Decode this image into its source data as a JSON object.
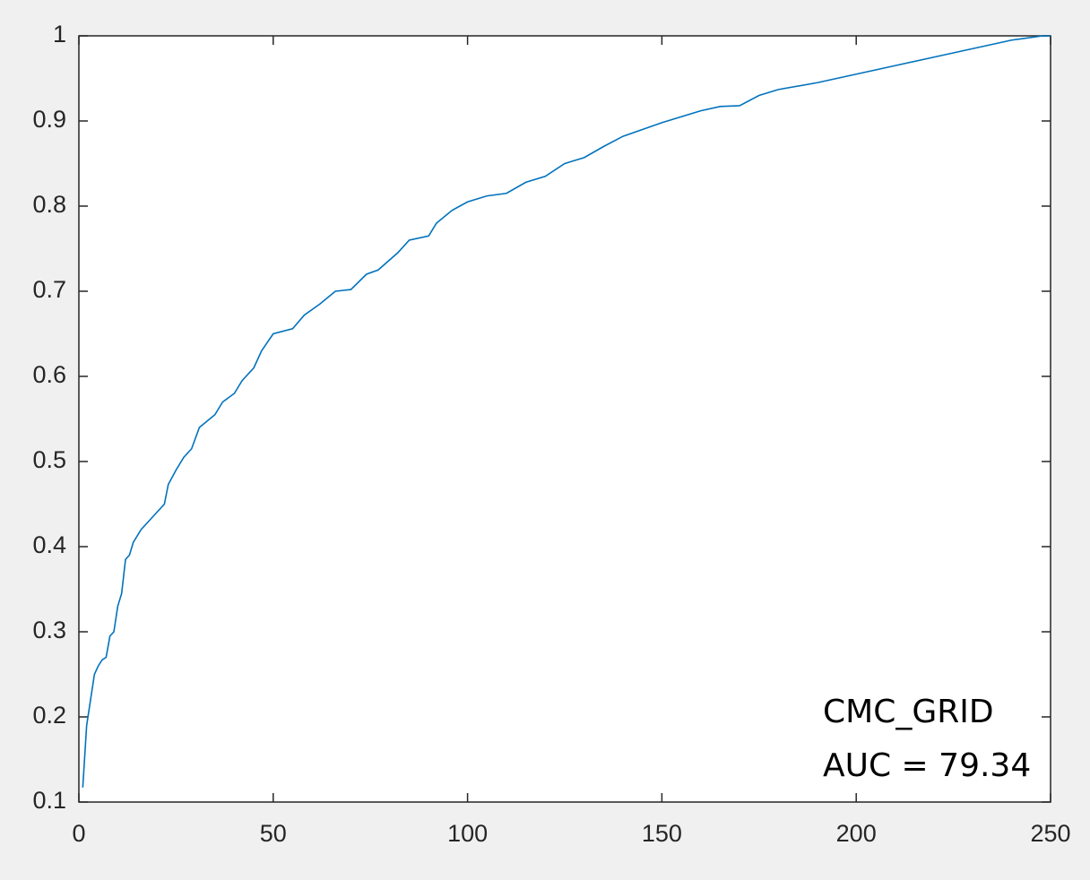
{
  "chart_data": {
    "type": "line",
    "x": [
      1,
      2,
      3,
      4,
      5,
      6,
      7,
      8,
      9,
      10,
      11,
      12,
      13,
      14,
      16,
      18,
      20,
      22,
      23,
      25,
      27,
      29,
      31,
      35,
      37,
      40,
      42,
      45,
      47,
      50,
      55,
      58,
      62,
      66,
      70,
      74,
      77,
      82,
      85,
      90,
      92,
      96,
      100,
      105,
      110,
      115,
      120,
      125,
      130,
      135,
      140,
      145,
      150,
      155,
      160,
      165,
      170,
      175,
      180,
      190,
      200,
      210,
      220,
      230,
      240,
      248,
      250
    ],
    "series": [
      {
        "color": "#0072bd",
        "values": [
          0.117,
          0.19,
          0.22,
          0.25,
          0.26,
          0.267,
          0.27,
          0.295,
          0.3,
          0.33,
          0.345,
          0.385,
          0.39,
          0.405,
          0.42,
          0.43,
          0.44,
          0.45,
          0.473,
          0.49,
          0.505,
          0.515,
          0.54,
          0.555,
          0.57,
          0.58,
          0.595,
          0.61,
          0.63,
          0.65,
          0.656,
          0.672,
          0.685,
          0.7,
          0.702,
          0.72,
          0.725,
          0.745,
          0.76,
          0.765,
          0.78,
          0.795,
          0.805,
          0.812,
          0.815,
          0.828,
          0.835,
          0.85,
          0.857,
          0.87,
          0.882,
          0.89,
          0.898,
          0.905,
          0.912,
          0.917,
          0.918,
          0.93,
          0.937,
          0.945,
          0.955,
          0.965,
          0.975,
          0.985,
          0.995,
          1.0,
          1.0
        ]
      }
    ],
    "xlim": [
      0,
      250
    ],
    "xticks": [
      0,
      50,
      100,
      150,
      200,
      250
    ],
    "ylim": [
      0.1,
      1
    ],
    "yticks": [
      0.1,
      0.2,
      0.3,
      0.4,
      0.5,
      0.6,
      0.7,
      0.8,
      0.9,
      1
    ],
    "annotations": [
      "CMC_GRID",
      "AUC = 79.34"
    ]
  }
}
